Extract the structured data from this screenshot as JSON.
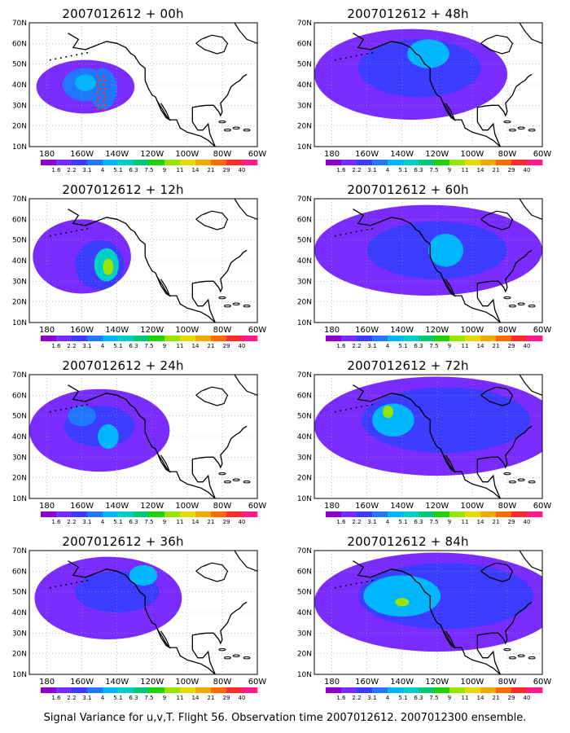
{
  "caption": "Signal Variance for u,v,T. Flight 56. Observation time 2007012612. 2007012300 ensemble.",
  "axes": {
    "lat_ticks": [
      "10N",
      "20N",
      "30N",
      "40N",
      "50N",
      "60N",
      "70N"
    ],
    "lon_ticks": [
      "180",
      "160W",
      "140W",
      "120W",
      "100W",
      "80W",
      "60W"
    ]
  },
  "colorbar": {
    "labels": [
      "1.6",
      "2.2",
      "3.1",
      "4",
      "5.1",
      "6.3",
      "7.5",
      "9",
      "11",
      "14",
      "21",
      "29",
      "40"
    ],
    "colors": [
      "#9000cc",
      "#7a2cff",
      "#3c3cff",
      "#1f78ff",
      "#00b6ff",
      "#00cfc8",
      "#00c878",
      "#22d200",
      "#98e600",
      "#e6dc00",
      "#f0aa00",
      "#ff6a00",
      "#ff2a2a",
      "#ff1a8c"
    ]
  },
  "panels": [
    {
      "title": "2007012612 + 00h",
      "fields": [
        {
          "lon": -158,
          "lat": 39,
          "rx": 28,
          "ry": 13,
          "v": 1
        },
        {
          "lon": -158,
          "lat": 40,
          "rx": 13,
          "ry": 8,
          "v": 3
        },
        {
          "lon": -148,
          "lat": 38,
          "rx": 8,
          "ry": 10,
          "v": 3
        },
        {
          "lon": -158,
          "lat": 41,
          "rx": 6,
          "ry": 4,
          "v": 4
        }
      ],
      "route": true
    },
    {
      "title": "2007012612 + 12h",
      "fields": [
        {
          "lon": -160,
          "lat": 42,
          "rx": 28,
          "ry": 18,
          "v": 1
        },
        {
          "lon": -150,
          "lat": 38,
          "rx": 14,
          "ry": 12,
          "v": 2
        },
        {
          "lon": -146,
          "lat": 38,
          "rx": 7,
          "ry": 8,
          "v": 5
        },
        {
          "lon": -145,
          "lat": 37,
          "rx": 3,
          "ry": 4,
          "v": 8
        }
      ]
    },
    {
      "title": "2007012612 + 24h",
      "fields": [
        {
          "lon": -150,
          "lat": 43,
          "rx": 40,
          "ry": 20,
          "v": 1
        },
        {
          "lon": -150,
          "lat": 45,
          "rx": 20,
          "ry": 10,
          "v": 2
        },
        {
          "lon": -145,
          "lat": 40,
          "rx": 6,
          "ry": 6,
          "v": 4
        },
        {
          "lon": -160,
          "lat": 50,
          "rx": 8,
          "ry": 5,
          "v": 3
        }
      ]
    },
    {
      "title": "2007012612 + 36h",
      "fields": [
        {
          "lon": -145,
          "lat": 47,
          "rx": 42,
          "ry": 20,
          "v": 1
        },
        {
          "lon": -140,
          "lat": 50,
          "rx": 24,
          "ry": 10,
          "v": 2
        },
        {
          "lon": -125,
          "lat": 58,
          "rx": 8,
          "ry": 5,
          "v": 4
        }
      ]
    },
    {
      "title": "2007012612 + 48h",
      "fields": [
        {
          "lon": -135,
          "lat": 45,
          "rx": 55,
          "ry": 22,
          "v": 1
        },
        {
          "lon": -130,
          "lat": 48,
          "rx": 35,
          "ry": 14,
          "v": 2
        },
        {
          "lon": -125,
          "lat": 55,
          "rx": 12,
          "ry": 7,
          "v": 4
        }
      ]
    },
    {
      "title": "2007012612 + 60h",
      "fields": [
        {
          "lon": -125,
          "lat": 45,
          "rx": 65,
          "ry": 22,
          "v": 1
        },
        {
          "lon": -120,
          "lat": 45,
          "rx": 40,
          "ry": 14,
          "v": 2
        },
        {
          "lon": -115,
          "lat": 45,
          "rx": 10,
          "ry": 8,
          "v": 4
        }
      ]
    },
    {
      "title": "2007012612 + 72h",
      "fields": [
        {
          "lon": -120,
          "lat": 45,
          "rx": 70,
          "ry": 24,
          "v": 1
        },
        {
          "lon": -115,
          "lat": 48,
          "rx": 48,
          "ry": 16,
          "v": 2
        },
        {
          "lon": -145,
          "lat": 48,
          "rx": 12,
          "ry": 8,
          "v": 4
        },
        {
          "lon": -148,
          "lat": 52,
          "rx": 3,
          "ry": 3,
          "v": 8
        }
      ]
    },
    {
      "title": "2007012612 + 84h",
      "fields": [
        {
          "lon": -120,
          "lat": 45,
          "rx": 70,
          "ry": 24,
          "v": 1
        },
        {
          "lon": -115,
          "lat": 48,
          "rx": 50,
          "ry": 16,
          "v": 2
        },
        {
          "lon": -140,
          "lat": 48,
          "rx": 22,
          "ry": 10,
          "v": 4
        },
        {
          "lon": -140,
          "lat": 45,
          "rx": 4,
          "ry": 2,
          "v": 8
        }
      ]
    }
  ]
}
